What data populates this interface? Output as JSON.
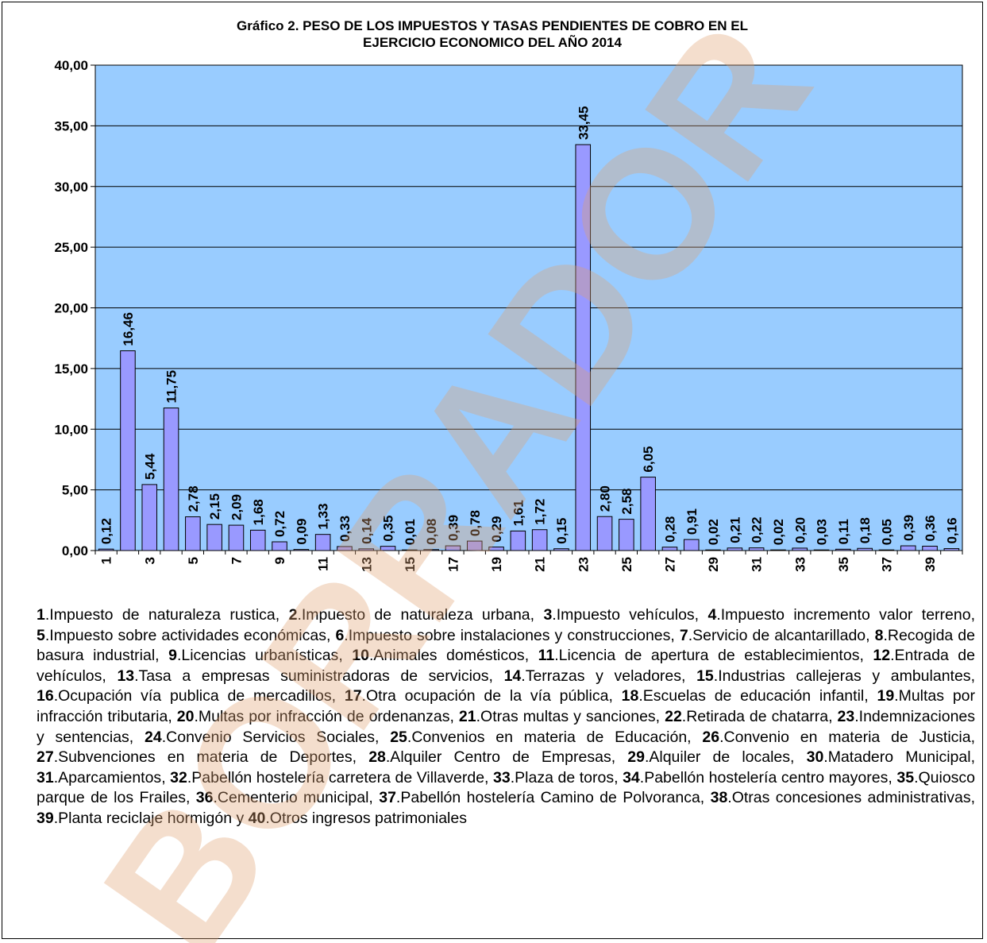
{
  "chart_data": {
    "type": "bar",
    "title": "Gráfico 2. PESO DE LOS IMPUESTOS Y TASAS PENDIENTES DE COBRO EN EL\nEJERCICIO ECONOMICO DEL AÑO 2014",
    "categories": [
      "1",
      "2",
      "3",
      "4",
      "5",
      "6",
      "7",
      "8",
      "9",
      "10",
      "11",
      "12",
      "13",
      "14",
      "15",
      "16",
      "17",
      "18",
      "19",
      "20",
      "21",
      "22",
      "23",
      "24",
      "25",
      "26",
      "27",
      "28",
      "29",
      "30",
      "31",
      "32",
      "33",
      "34",
      "35",
      "36",
      "37",
      "38",
      "39",
      "40"
    ],
    "x_tick_labels": [
      "1",
      "3",
      "5",
      "7",
      "9",
      "11",
      "13",
      "15",
      "17",
      "19",
      "21",
      "23",
      "25",
      "27",
      "29",
      "31",
      "33",
      "35",
      "37",
      "39"
    ],
    "values": [
      0.12,
      16.46,
      5.44,
      11.75,
      2.78,
      2.15,
      2.09,
      1.68,
      0.72,
      0.09,
      1.33,
      0.33,
      0.14,
      0.35,
      0.01,
      0.08,
      0.39,
      0.78,
      0.29,
      1.61,
      1.72,
      0.15,
      33.45,
      2.8,
      2.58,
      6.05,
      0.28,
      0.91,
      0.02,
      0.21,
      0.22,
      0.02,
      0.2,
      0.03,
      0.11,
      0.18,
      0.05,
      0.39,
      0.36,
      0.16
    ],
    "data_labels": [
      "0,12",
      "16,46",
      "5,44",
      "11,75",
      "2,78",
      "2,15",
      "2,09",
      "1,68",
      "0,72",
      "0,09",
      "1,33",
      "0,33",
      "0,14",
      "0,35",
      "0,01",
      "0,08",
      "0,39",
      "0,78",
      "0,29",
      "1,61",
      "1,72",
      "0,15",
      "33,45",
      "2,80",
      "2,58",
      "6,05",
      "0,28",
      "0,91",
      "0,02",
      "0,21",
      "0,22",
      "0,02",
      "0,20",
      "0,03",
      "0,11",
      "0,18",
      "0,05",
      "0,39",
      "0,36",
      "0,16"
    ],
    "y_tick_labels": [
      "0,00",
      "5,00",
      "10,00",
      "15,00",
      "20,00",
      "25,00",
      "30,00",
      "35,00",
      "40,00"
    ],
    "ylim": [
      0,
      40
    ],
    "y_step": 5,
    "grid": true,
    "xlabel": "",
    "ylabel": "",
    "colors": {
      "plot_background": "#99CCFF",
      "bar_fill": "#9999FF",
      "bar_stroke": "#000000",
      "gridline": "#000000",
      "watermark": "#000000"
    }
  },
  "legend_items": [
    {
      "num": "1",
      "text": "Impuesto de naturaleza rustica"
    },
    {
      "num": "2",
      "text": "Impuesto de naturaleza urbana"
    },
    {
      "num": "3",
      "text": "Impuesto vehículos"
    },
    {
      "num": "4",
      "text": "Impuesto incremento valor terreno"
    },
    {
      "num": "5",
      "text": "Impuesto sobre actividades económicas"
    },
    {
      "num": "6",
      "text": "Impuesto sobre instalaciones y construcciones"
    },
    {
      "num": "7",
      "text": "Servicio de alcantarillado"
    },
    {
      "num": "8",
      "text": "Recogida de basura industrial"
    },
    {
      "num": "9",
      "text": "Licencias urbanísticas"
    },
    {
      "num": "10",
      "text": "Animales domésticos"
    },
    {
      "num": "11",
      "text": "Licencia de apertura de establecimientos"
    },
    {
      "num": "12",
      "text": "Entrada de vehículos"
    },
    {
      "num": "13",
      "text": "Tasa a empresas suministradoras de servicios"
    },
    {
      "num": "14",
      "text": "Terrazas y veladores"
    },
    {
      "num": "15",
      "text": "Industrias callejeras y ambulantes"
    },
    {
      "num": "16",
      "text": "Ocupación vía publica de mercadillos"
    },
    {
      "num": "17",
      "text": "Otra ocupación de la vía pública"
    },
    {
      "num": "18",
      "text": "Escuelas de educación infantil"
    },
    {
      "num": "19",
      "text": "Multas por infracción tributaria"
    },
    {
      "num": "20",
      "text": "Multas por infracción de ordenanzas"
    },
    {
      "num": "21",
      "text": "Otras multas y sanciones"
    },
    {
      "num": "22",
      "text": "Retirada de chatarra"
    },
    {
      "num": "23",
      "text": "Indemnizaciones y sentencias"
    },
    {
      "num": "24",
      "text": "Convenio Servicios Sociales"
    },
    {
      "num": "25",
      "text": "Convenios en materia de Educación"
    },
    {
      "num": "26",
      "text": "Convenio en materia de Justicia"
    },
    {
      "num": "27",
      "text": "Subvenciones en materia de Deportes"
    },
    {
      "num": "28",
      "text": "Alquiler Centro de Empresas"
    },
    {
      "num": "29",
      "text": "Alquiler de locales"
    },
    {
      "num": "30",
      "text": "Matadero Municipal"
    },
    {
      "num": "31",
      "text": "Aparcamientos"
    },
    {
      "num": "32",
      "text": "Pabellón hostelería carretera de Villaverde"
    },
    {
      "num": "33",
      "text": "Plaza de toros"
    },
    {
      "num": "34",
      "text": "Pabellón hostelería centro mayores"
    },
    {
      "num": "35",
      "text": "Quiosco parque de los Frailes"
    },
    {
      "num": "36",
      "text": "Cementerio municipal"
    },
    {
      "num": "37",
      "text": "Pabellón hostelería Camino de Polvoranca"
    },
    {
      "num": "38",
      "text": "Otras concesiones administrativas"
    },
    {
      "num": "39",
      "text": "Planta reciclaje hormigón"
    },
    {
      "num": "40",
      "text": "Otros ingresos patrimoniales"
    }
  ],
  "legend_separator": ", ",
  "legend_last_separator": " y ",
  "legend_num_suffix": ".",
  "watermark": {
    "text": "BORRADOR",
    "color": "#E0A070"
  }
}
